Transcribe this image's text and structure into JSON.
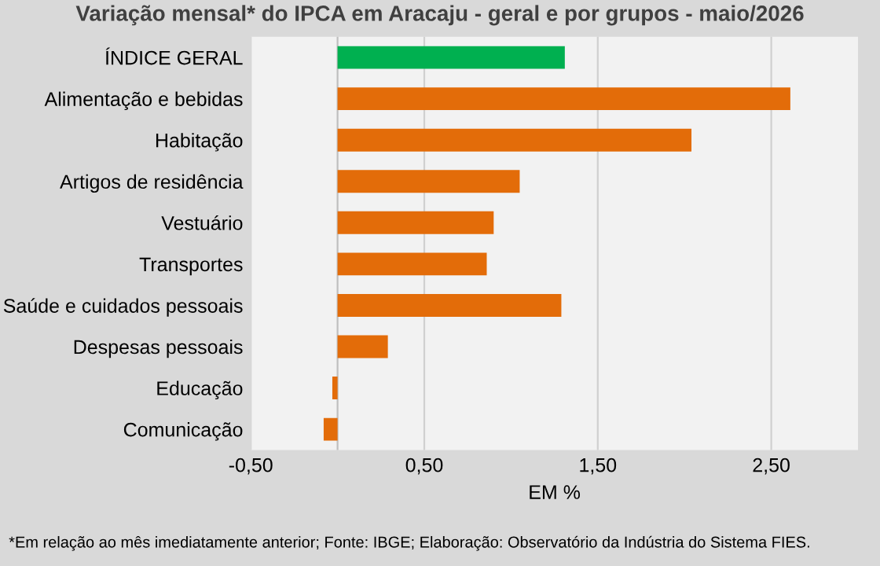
{
  "chart_data": {
    "type": "bar",
    "orientation": "horizontal",
    "title": "Variação mensal* do IPCA em Aracaju - geral e por grupos - maio/2026",
    "categories": [
      "ÍNDICE GERAL",
      "Alimentação e bebidas",
      "Habitação",
      "Artigos de residência",
      "Vestuário",
      "Transportes",
      "Saúde e cuidados pessoais",
      "Despesas pessoais",
      "Educação",
      "Comunicação"
    ],
    "values": [
      1.31,
      2.61,
      2.04,
      1.05,
      0.9,
      0.86,
      1.29,
      0.29,
      -0.03,
      -0.08
    ],
    "colors": [
      "#00b050",
      "#e36c09",
      "#e36c09",
      "#e36c09",
      "#e36c09",
      "#e36c09",
      "#e36c09",
      "#e36c09",
      "#e36c09",
      "#e36c09"
    ],
    "xlabel": "EM %",
    "xlim": [
      -0.5,
      3.0
    ],
    "xticks": [
      {
        "value": -0.5,
        "label": "-0,50"
      },
      {
        "value": 0.5,
        "label": "0,50"
      },
      {
        "value": 1.5,
        "label": "1,50"
      },
      {
        "value": 2.5,
        "label": "2,50"
      }
    ],
    "grid": "x",
    "annotations": [
      "*Em relação ao mês imediatamente anterior; Fonte: IBGE; Elaboração: Observatório da Indústria do Sistema FIES."
    ]
  }
}
